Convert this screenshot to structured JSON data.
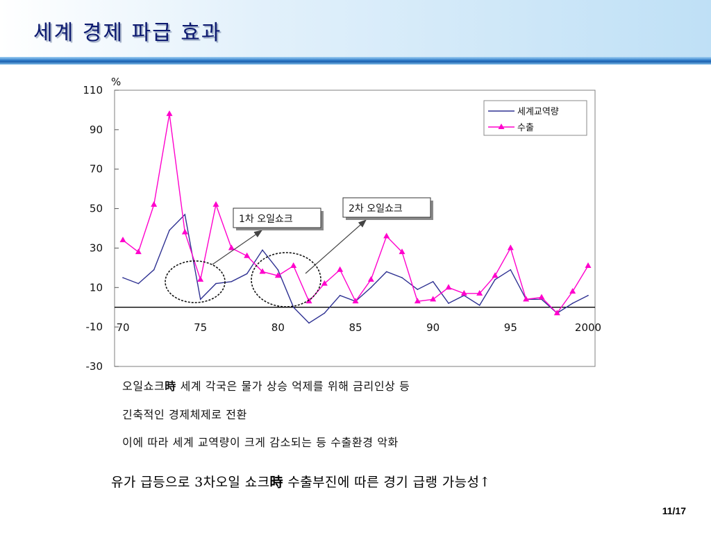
{
  "slide": {
    "title": "세계 경제 파급 효과",
    "page": "11/17"
  },
  "chart_data": {
    "type": "line",
    "ylabel": "%",
    "xlabel": "",
    "title": "",
    "xlim": [
      1970,
      2000
    ],
    "ylim": [
      -30,
      110
    ],
    "y_ticks": [
      110,
      90,
      70,
      50,
      30,
      10,
      -10,
      -30
    ],
    "y_tick_labels": [
      "110",
      "90",
      "70",
      "50",
      "30",
      "10",
      "-10",
      "-30"
    ],
    "x_ticks": [
      1970,
      1975,
      1980,
      1985,
      1990,
      1995,
      2000
    ],
    "x_tick_labels": [
      "70",
      "75",
      "80",
      "85",
      "90",
      "95",
      "2000"
    ],
    "grid": false,
    "legend": "top-right",
    "x": [
      1970,
      1971,
      1972,
      1973,
      1974,
      1975,
      1976,
      1977,
      1978,
      1979,
      1980,
      1981,
      1982,
      1983,
      1984,
      1985,
      1986,
      1987,
      1988,
      1989,
      1990,
      1991,
      1992,
      1993,
      1994,
      1995,
      1996,
      1997,
      1998,
      1999,
      2000
    ],
    "series": [
      {
        "name": "세계교역량",
        "color": "#2e3192",
        "marker": "none",
        "values": [
          15,
          12,
          19,
          39,
          47,
          4,
          12,
          13,
          17,
          29,
          19,
          0,
          -8,
          -3,
          6,
          3,
          10,
          18,
          15,
          9,
          13,
          2,
          6,
          1,
          14,
          19,
          4,
          4,
          -3,
          2,
          6
        ]
      },
      {
        "name": "수출",
        "color": "#ff00cc",
        "marker": "triangle",
        "values": [
          34,
          28,
          52,
          98,
          38,
          14,
          52,
          30,
          26,
          18,
          16,
          21,
          3,
          12,
          19,
          3,
          14,
          36,
          28,
          3,
          4,
          10,
          7,
          7,
          16,
          30,
          4,
          5,
          -3,
          8,
          21
        ]
      }
    ],
    "annotations": [
      {
        "text": "1차 오일쇼크",
        "year": 1975
      },
      {
        "text": "2차 오일쇼크",
        "year": 1981
      }
    ]
  },
  "notes": {
    "line1": {
      "pre": "오일쇼크",
      "bold": "時",
      "post": " 세계 각국은 물가 상승 억제를 위해 금리인상 등"
    },
    "line2": "긴축적인 경제체제로 전환",
    "line3": "이에 따라 세계 교역량이 크게 감소되는 등 수출환경 악화"
  },
  "conclusion": {
    "pre": "유가 급등으로 3차오일 쇼크",
    "bold": "時",
    "post": " 수출부진에 따른 경기 급랭 가능성↑"
  }
}
